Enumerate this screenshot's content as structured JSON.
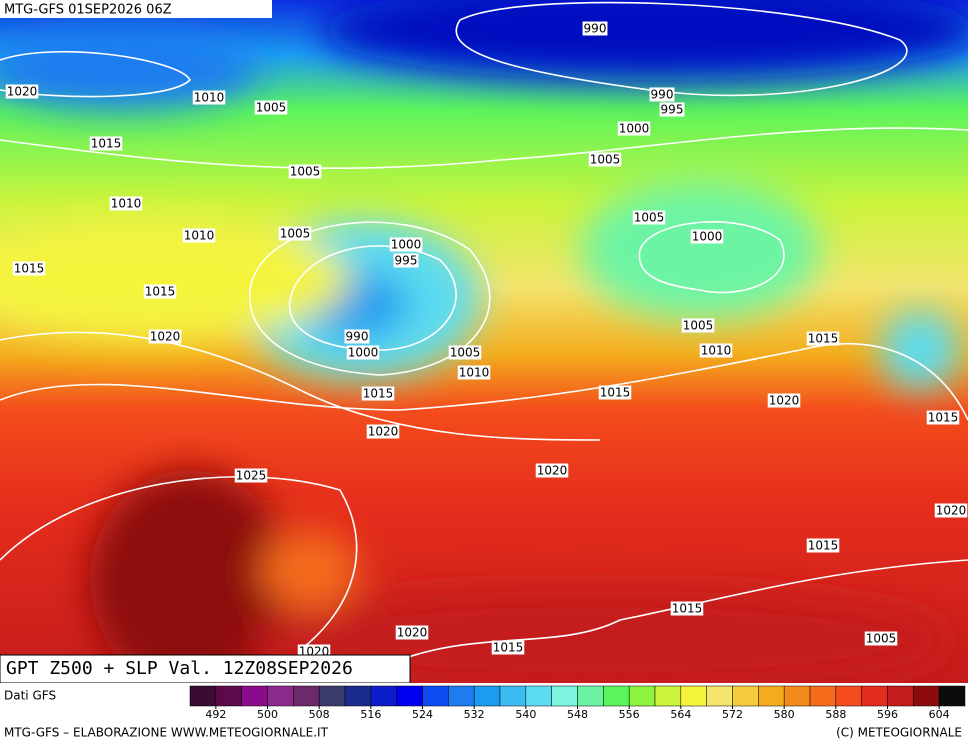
{
  "header": {
    "run": "MTG-GFS 01SEP2026 06Z"
  },
  "map": {
    "title": "GPT Z500 + SLP Val. 12Z08SEP2026",
    "isobar_labels": [
      990,
      990,
      995,
      1000,
      1005,
      1010,
      1005,
      1020,
      1015,
      1005,
      1010,
      1010,
      1005,
      1000,
      995,
      1005,
      1000,
      1015,
      1015,
      1020,
      990,
      1000,
      1005,
      1010,
      1015,
      1005,
      1010,
      1015,
      1015,
      1020,
      1015,
      1020,
      1020,
      1025,
      1020,
      1015,
      1015,
      1020,
      1015,
      1005,
      1020
    ]
  },
  "colorbar": {
    "source": "Dati GFS",
    "lim": [
      488,
      608
    ],
    "ticks": [
      492,
      500,
      508,
      516,
      524,
      532,
      540,
      548,
      556,
      564,
      572,
      580,
      588,
      596,
      604
    ],
    "colors": [
      "#3c0a32",
      "#5c0a4c",
      "#8c0a8c",
      "#8c2a8c",
      "#6c2a6c",
      "#3c3c6c",
      "#1c2c8c",
      "#0c1cc8",
      "#0000f0",
      "#0c4cf0",
      "#1c7cf0",
      "#1c9cf0",
      "#3cbcf0",
      "#5cdcf0",
      "#7cf4e0",
      "#6cf4a4",
      "#5cf45c",
      "#8cf43c",
      "#ccf43c",
      "#f4f43c",
      "#f4e46c",
      "#f4cc3c",
      "#f4ac1c",
      "#f48c1c",
      "#f46c1c",
      "#f44c1c",
      "#e42c1c",
      "#c41c1c",
      "#8c0c0c",
      "#0c0c0c"
    ]
  },
  "footer": {
    "left": "MTG-GFS – ELABORAZIONE WWW.METEOGIORNALE.IT",
    "right": "(C) METEOGIORNALE"
  }
}
